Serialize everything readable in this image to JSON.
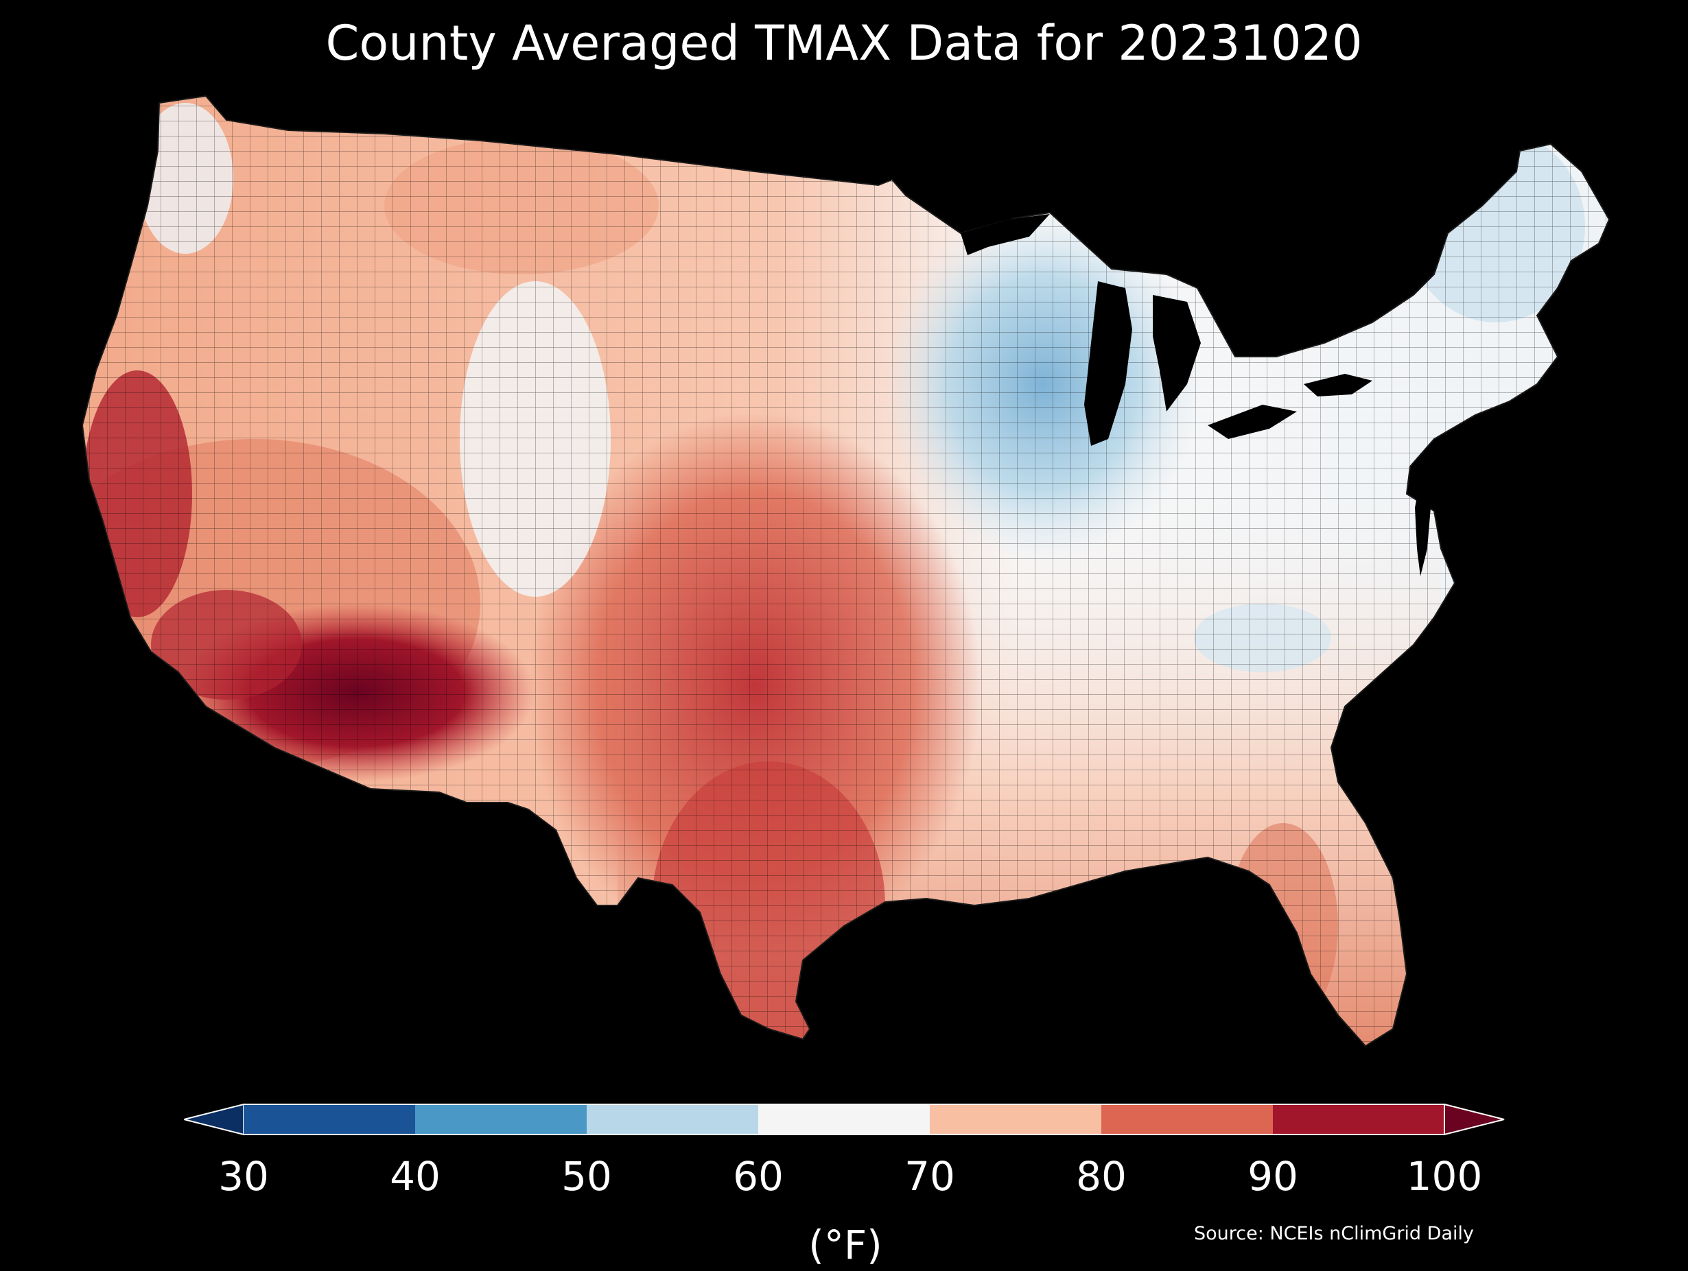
{
  "title": "County Averaged TMAX Data for 20231020",
  "colorbar": {
    "ticks": [
      "30",
      "40",
      "50",
      "60",
      "70",
      "80",
      "90",
      "100"
    ],
    "unit": "(°F)",
    "bins": [
      {
        "range": [
          30,
          40
        ],
        "color": "#1b5496"
      },
      {
        "range": [
          40,
          50
        ],
        "color": "#4a98c5"
      },
      {
        "range": [
          50,
          60
        ],
        "color": "#b8d8e9"
      },
      {
        "range": [
          60,
          70
        ],
        "color": "#f5f5f5"
      },
      {
        "range": [
          70,
          80
        ],
        "color": "#f8bfa3"
      },
      {
        "range": [
          80,
          90
        ],
        "color": "#dc6651"
      },
      {
        "range": [
          90,
          100
        ],
        "color": "#a1162a"
      }
    ],
    "under_color": "#0b2f63",
    "over_color": "#6a0320"
  },
  "source": "Source: NCEIs nClimGrid Daily",
  "map": {
    "region": "Contiguous United States counties",
    "variable": "TMAX",
    "date": "20231020",
    "regional_pattern": [
      {
        "area": "Desert Southwest",
        "value_range_f": [
          95,
          100
        ]
      },
      {
        "area": "California Central Valley",
        "value_range_f": [
          88,
          95
        ]
      },
      {
        "area": "Texas and Southern Plains",
        "value_range_f": [
          82,
          92
        ]
      },
      {
        "area": "Southeast and Florida",
        "value_range_f": [
          74,
          84
        ]
      },
      {
        "area": "Northern Rockies and Plains",
        "value_range_f": [
          65,
          78
        ]
      },
      {
        "area": "Upper Midwest and Great Lakes",
        "value_range_f": [
          50,
          60
        ]
      },
      {
        "area": "Northeast and New England",
        "value_range_f": [
          56,
          64
        ]
      },
      {
        "area": "Pacific Northwest coast",
        "value_range_f": [
          58,
          66
        ]
      }
    ]
  }
}
